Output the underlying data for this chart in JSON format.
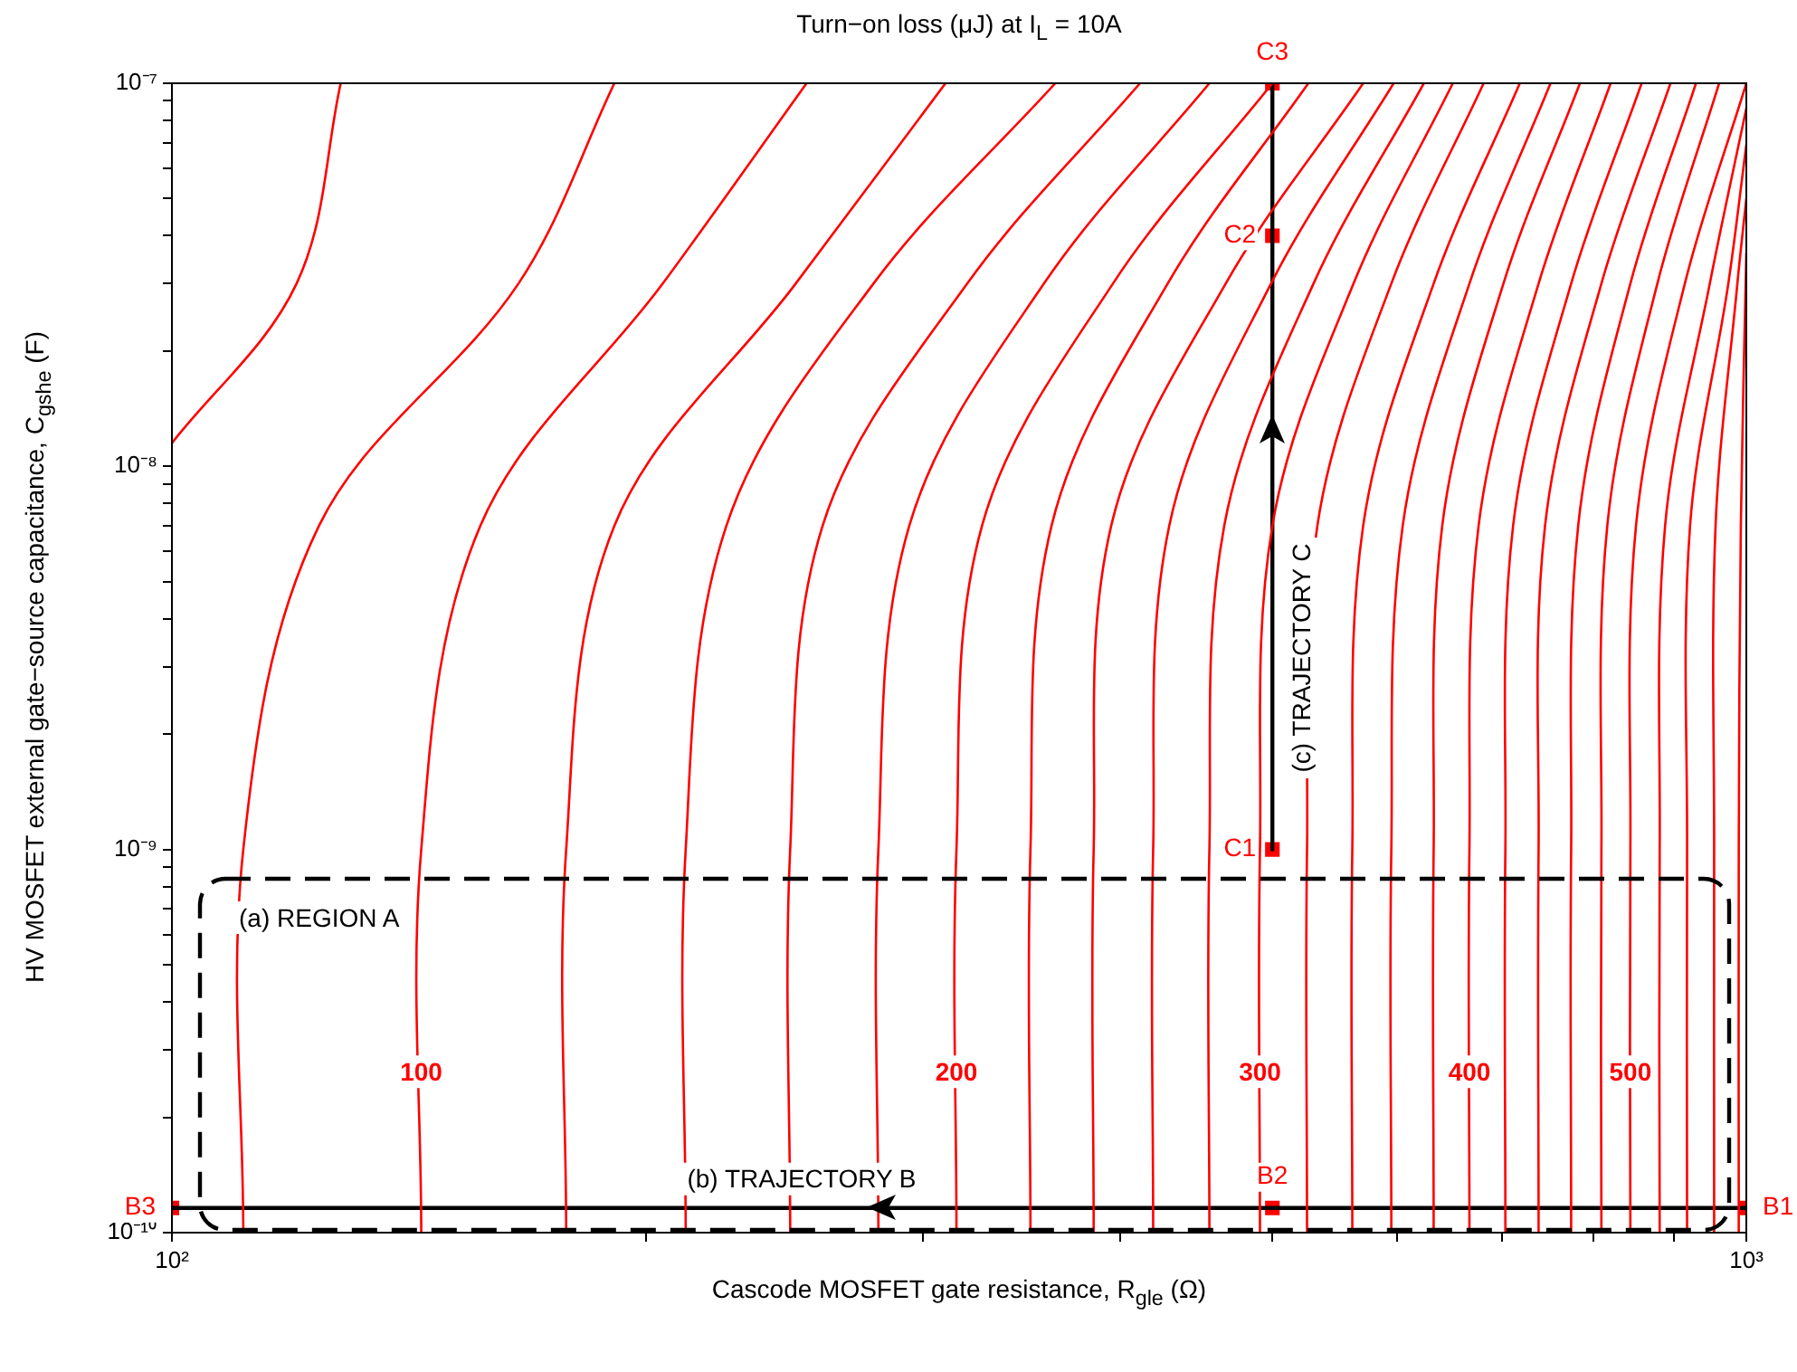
{
  "chart_data": {
    "type": "line",
    "title": "Turn−on loss (μJ) at I$_{L}$ = 10A",
    "xlabel": "Cascode MOSFET gate resistance, R$_{gle}$ (Ω)",
    "ylabel": "HV MOSFET external gate−source capacitance, C$_{gshe}$ (F)",
    "log": "xy",
    "grid": false,
    "xlim": [
      100,
      1000
    ],
    "ylim": [
      1e-10,
      1e-07
    ],
    "xticks": [
      {
        "value": 100,
        "label": "10²"
      },
      {
        "value": 200,
        "label": null
      },
      {
        "value": 300,
        "label": null
      },
      {
        "value": 400,
        "label": null
      },
      {
        "value": 500,
        "label": null
      },
      {
        "value": 600,
        "label": null
      },
      {
        "value": 700,
        "label": null
      },
      {
        "value": 800,
        "label": null
      },
      {
        "value": 900,
        "label": null
      },
      {
        "value": 1000,
        "label": "10³"
      }
    ],
    "yticks": [
      {
        "value": 1e-10,
        "label": "10⁻¹⁰"
      },
      {
        "value": 2e-10,
        "label": null
      },
      {
        "value": 3e-10,
        "label": null
      },
      {
        "value": 4e-10,
        "label": null
      },
      {
        "value": 5e-10,
        "label": null
      },
      {
        "value": 6e-10,
        "label": null
      },
      {
        "value": 7e-10,
        "label": null
      },
      {
        "value": 8e-10,
        "label": null
      },
      {
        "value": 9e-10,
        "label": null
      },
      {
        "value": 1e-09,
        "label": "10⁻⁹"
      },
      {
        "value": 2e-09,
        "label": null
      },
      {
        "value": 3e-09,
        "label": null
      },
      {
        "value": 4e-09,
        "label": null
      },
      {
        "value": 5e-09,
        "label": null
      },
      {
        "value": 6e-09,
        "label": null
      },
      {
        "value": 7e-09,
        "label": null
      },
      {
        "value": 8e-09,
        "label": null
      },
      {
        "value": 9e-09,
        "label": null
      },
      {
        "value": 1e-08,
        "label": "10⁻⁸"
      },
      {
        "value": 2e-08,
        "label": null
      },
      {
        "value": 3e-08,
        "label": null
      },
      {
        "value": 4e-08,
        "label": null
      },
      {
        "value": 5e-08,
        "label": null
      },
      {
        "value": 6e-08,
        "label": null
      },
      {
        "value": 7e-08,
        "label": null
      },
      {
        "value": 8e-08,
        "label": null
      },
      {
        "value": 9e-08,
        "label": null
      },
      {
        "value": 1e-07,
        "label": "10⁻⁷"
      }
    ],
    "series": [
      {
        "type": "line",
        "color": "#ff0000",
        "x": [
          100,
          120,
          128
        ],
        "values": [
          1.15e-08,
          3e-08,
          1e-07
        ]
      },
      {
        "type": "line",
        "color": "#ff0000",
        "x": [
          111,
          111,
          124,
          166,
          191
        ],
        "values": [
          1e-10,
          1e-09,
          7e-09,
          3e-08,
          1e-07
        ]
      },
      {
        "type": "line",
        "color": "#ff0000",
        "x": [
          144,
          144,
          157,
          205,
          253
        ],
        "values": [
          1e-10,
          1e-09,
          7e-09,
          3e-08,
          1e-07
        ]
      },
      {
        "type": "line",
        "color": "#ff0000",
        "x": [
          178,
          178,
          191,
          249,
          310
        ],
        "values": [
          1e-10,
          1e-09,
          7e-09,
          3e-08,
          1e-07
        ]
      },
      {
        "type": "line",
        "color": "#ff0000",
        "x": [
          212,
          212,
          225,
          279,
          364
        ],
        "values": [
          1e-10,
          1e-09,
          7e-09,
          3e-08,
          1e-07
        ]
      },
      {
        "type": "line",
        "color": "#ff0000",
        "x": [
          247,
          247,
          259,
          320,
          412
        ],
        "values": [
          1e-10,
          1e-09,
          7e-09,
          3e-08,
          1e-07
        ]
      },
      {
        "type": "line",
        "color": "#ff0000",
        "x": [
          281,
          281,
          294,
          358,
          456
        ],
        "values": [
          1e-10,
          1e-09,
          7e-09,
          3e-08,
          1e-07
        ]
      },
      {
        "type": "line",
        "color": "#ff0000",
        "x": [
          315,
          315,
          327,
          396,
          500
        ],
        "values": [
          1e-10,
          1e-09,
          7e-09,
          3e-08,
          1e-07
        ]
      },
      {
        "type": "line",
        "color": "#ff0000",
        "x": [
          351,
          351,
          362,
          429,
          527
        ],
        "values": [
          1e-10,
          1e-09,
          7e-09,
          3e-08,
          1e-07
        ]
      },
      {
        "type": "line",
        "color": "#ff0000",
        "x": [
          385,
          385,
          395,
          467,
          571
        ],
        "values": [
          1e-10,
          1e-09,
          7e-09,
          3e-08,
          1e-07
        ]
      },
      {
        "type": "line",
        "color": "#ff0000",
        "x": [
          420,
          420,
          430,
          499,
          597
        ],
        "values": [
          1e-10,
          1e-09,
          7e-09,
          3e-08,
          1e-07
        ]
      },
      {
        "type": "line",
        "color": "#ff0000",
        "x": [
          456,
          456,
          466,
          531,
          624
        ],
        "values": [
          1e-10,
          1e-09,
          7e-09,
          3e-08,
          1e-07
        ]
      },
      {
        "type": "line",
        "color": "#ff0000",
        "x": [
          491,
          491,
          500,
          563,
          651
        ],
        "values": [
          1e-10,
          1e-09,
          7e-09,
          3e-08,
          1e-07
        ]
      },
      {
        "type": "line",
        "color": "#ff0000",
        "x": [
          526,
          526,
          534,
          595,
          681
        ],
        "values": [
          1e-10,
          1e-09,
          7e-09,
          3e-08,
          1e-07
        ]
      },
      {
        "type": "line",
        "color": "#ff0000",
        "x": [
          562,
          562,
          571,
          633,
          718
        ],
        "values": [
          1e-10,
          1e-09,
          7e-09,
          3e-08,
          1e-07
        ]
      },
      {
        "type": "line",
        "color": "#ff0000",
        "x": [
          595,
          595,
          605,
          667,
          751
        ],
        "values": [
          1e-10,
          1e-09,
          7e-09,
          3e-08,
          1e-07
        ]
      },
      {
        "type": "line",
        "color": "#ff0000",
        "x": [
          633,
          633,
          641,
          701,
          784
        ],
        "values": [
          1e-10,
          1e-09,
          7e-09,
          3e-08,
          1e-07
        ]
      },
      {
        "type": "line",
        "color": "#ff0000",
        "x": [
          667,
          667,
          676,
          738,
          820
        ],
        "values": [
          1e-10,
          1e-09,
          7e-09,
          3e-08,
          1e-07
        ]
      },
      {
        "type": "line",
        "color": "#ff0000",
        "x": [
          703,
          703,
          711,
          774,
          858
        ],
        "values": [
          1e-10,
          1e-09,
          7e-09,
          3e-08,
          1e-07
        ]
      },
      {
        "type": "line",
        "color": "#ff0000",
        "x": [
          738,
          738,
          745,
          809,
          895
        ],
        "values": [
          1e-10,
          1e-09,
          7e-09,
          3e-08,
          1e-07
        ]
      },
      {
        "type": "line",
        "color": "#ff0000",
        "x": [
          774,
          774,
          782,
          844,
          929
        ],
        "values": [
          1e-10,
          1e-09,
          7e-09,
          3e-08,
          1e-07
        ]
      },
      {
        "type": "line",
        "color": "#ff0000",
        "x": [
          809,
          809,
          816,
          878,
          961
        ],
        "values": [
          1e-10,
          1e-09,
          7e-09,
          3e-08,
          1e-07
        ]
      },
      {
        "type": "line",
        "color": "#ff0000",
        "x": [
          844,
          844,
          851,
          914,
          1000
        ],
        "values": [
          1e-10,
          1e-09,
          7e-09,
          3e-08,
          1e-07
        ]
      },
      {
        "type": "line",
        "color": "#ff0000",
        "x": [
          881,
          881,
          888,
          948,
          1000
        ],
        "values": [
          1e-10,
          1e-09,
          7e-09,
          3e-08,
          8.6e-08
        ]
      },
      {
        "type": "line",
        "color": "#ff0000",
        "x": [
          917,
          917,
          921,
          974,
          1000
        ],
        "values": [
          1e-10,
          1e-09,
          7e-09,
          3e-08,
          6.9e-08
        ]
      },
      {
        "type": "line",
        "color": "#ff0000",
        "x": [
          954,
          954,
          956,
          987,
          1000
        ],
        "values": [
          1e-10,
          1e-09,
          7e-09,
          3e-08,
          5e-08
        ]
      },
      {
        "type": "line",
        "color": "#ff0000",
        "x": [
          989,
          989,
          992,
          1000
        ],
        "values": [
          1e-10,
          1e-09,
          7e-09,
          3.6e-08
        ]
      },
      {
        "name": "(b) TRAJECTORY B",
        "color": "#000000",
        "x": [
          1000,
          500,
          100
        ],
        "values": [
          1.16e-10,
          1.16e-10,
          1.16e-10
        ]
      },
      {
        "name": "(c) TRAJECTORY C",
        "color": "#000000",
        "x": [
          500,
          500,
          500
        ],
        "values": [
          1e-09,
          4e-08,
          1e-07
        ]
      },
      {
        "type": "scatter",
        "color": "#ff0000",
        "marker": "square",
        "x": [
          500,
          500,
          500,
          1000,
          500,
          100
        ],
        "values": [
          1e-09,
          4e-08,
          1e-07,
          1.16e-10,
          1.16e-10,
          1.16e-10
        ]
      }
    ],
    "annotations": [
      {
        "text": "C1",
        "x": 500,
        "y": 1e-09
      },
      {
        "text": "C2",
        "x": 500,
        "y": 4e-08
      },
      {
        "text": "C3",
        "x": 500,
        "y": 1e-07
      },
      {
        "text": "B1",
        "x": 1000,
        "y": 1.16e-10
      },
      {
        "text": "B2",
        "x": 500,
        "y": 1.16e-10
      },
      {
        "text": "B3",
        "x": 100,
        "y": 1.16e-10
      },
      {
        "text": "100",
        "x": 144,
        "y": 2.63e-10
      },
      {
        "text": "200",
        "x": 315,
        "y": 2.63e-10
      },
      {
        "text": "300",
        "x": 491,
        "y": 2.63e-10
      },
      {
        "text": "400",
        "x": 667,
        "y": 2.63e-10
      },
      {
        "text": "500",
        "x": 844,
        "y": 2.63e-10
      },
      "(a) REGION A"
    ]
  }
}
